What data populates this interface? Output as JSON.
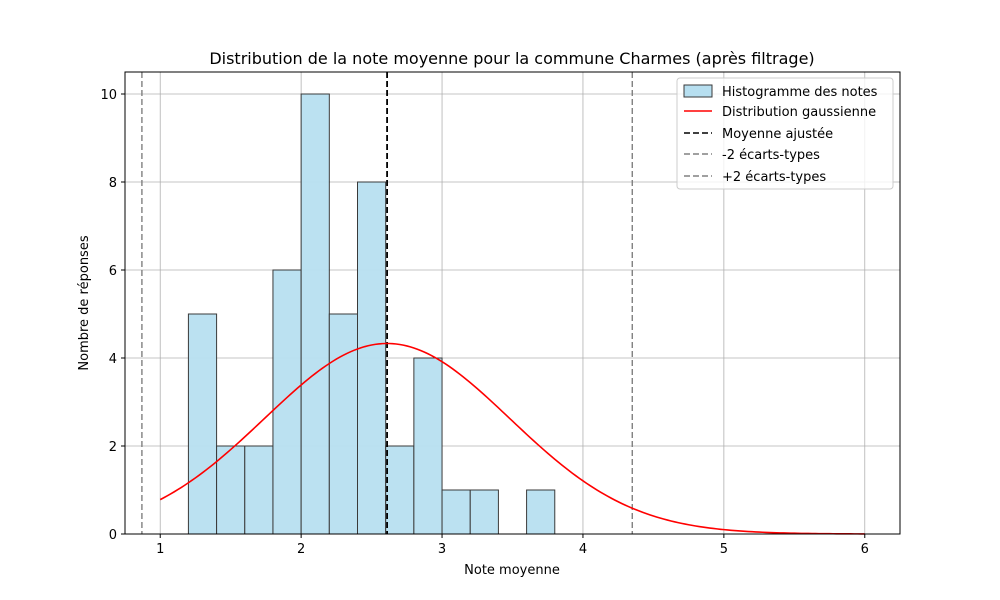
{
  "chart_data": {
    "type": "bar",
    "title": "Distribution de la note moyenne pour la commune Charmes (après filtrage)",
    "xlabel": "Note moyenne",
    "ylabel": "Nombre de réponses",
    "xlim": [
      0.75,
      6.25
    ],
    "ylim": [
      0,
      10.5
    ],
    "xticks": [
      1,
      2,
      3,
      4,
      5,
      6
    ],
    "yticks": [
      0,
      2,
      4,
      6,
      8,
      10
    ],
    "grid": true,
    "legend_position": "top-right",
    "histogram": {
      "name": "Histogramme des notes",
      "bin_width": 0.2,
      "bin_starts": [
        1.2,
        1.4,
        1.6,
        1.8,
        2.0,
        2.2,
        2.4,
        2.6,
        2.8,
        3.0,
        3.2,
        3.4,
        3.6
      ],
      "counts": [
        5,
        2,
        2,
        6,
        10,
        5,
        8,
        2,
        4,
        1,
        1,
        0,
        1
      ],
      "fill_color": "#b7dff0",
      "edge_color": "#3a3a3a"
    },
    "gaussian": {
      "name": "Distribution gaussienne",
      "mean": 2.61,
      "sd": 0.87,
      "peak": 4.33,
      "x_range": [
        1.0,
        6.0
      ],
      "color": "#ff0000"
    },
    "mean_line": {
      "name": "Moyenne ajustée",
      "x": 2.61,
      "color": "#000000"
    },
    "minus_2sd_line": {
      "name": "-2 écarts-types",
      "x": 0.87,
      "color": "#808080"
    },
    "plus_2sd_line": {
      "name": "+2 écarts-types",
      "x": 4.35,
      "color": "#808080"
    }
  }
}
